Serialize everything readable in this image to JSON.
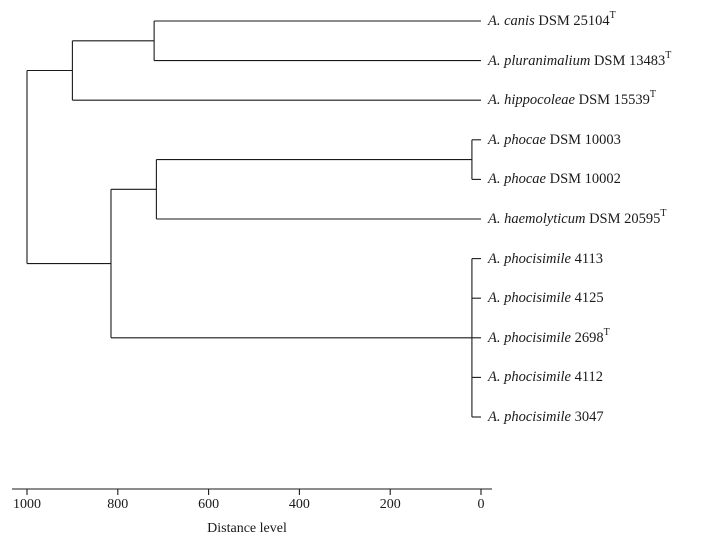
{
  "leaves": [
    {
      "species": "A. canis",
      "strain": "DSM 25104",
      "type_strain": true
    },
    {
      "species": "A. pluranimalium",
      "strain": "DSM 13483",
      "type_strain": true
    },
    {
      "species": "A. hippocoleae",
      "strain": "DSM 15539",
      "type_strain": true
    },
    {
      "species": "A. phocae",
      "strain": "DSM 10003",
      "type_strain": false
    },
    {
      "species": "A. phocae",
      "strain": "DSM 10002",
      "type_strain": false
    },
    {
      "species": "A. haemolyticum",
      "strain": "DSM 20595",
      "type_strain": true
    },
    {
      "species": "A. phocisimile",
      "strain": "4113",
      "type_strain": false
    },
    {
      "species": "A. phocisimile",
      "strain": "4125",
      "type_strain": false
    },
    {
      "species": "A. phocisimile",
      "strain": "2698",
      "type_strain": true
    },
    {
      "species": "A. phocisimile",
      "strain": "4112",
      "type_strain": false
    },
    {
      "species": "A. phocisimile",
      "strain": "3047",
      "type_strain": false
    }
  ],
  "type_strain_mark": "T",
  "clusters": [
    {
      "id": "c_canis_plur",
      "children": [
        0,
        1
      ],
      "distance": 720
    },
    {
      "id": "c_hippo",
      "children": [
        "c_canis_plur",
        2
      ],
      "distance": 900
    },
    {
      "id": "c_phocae",
      "children": [
        3,
        4
      ],
      "distance": 20
    },
    {
      "id": "c_haemo",
      "children": [
        "c_phocae",
        5
      ],
      "distance": 715
    },
    {
      "id": "c_phocisimile",
      "children": [
        6,
        7,
        8,
        9,
        10
      ],
      "distance": 20
    },
    {
      "id": "c_lower",
      "children": [
        "c_haemo",
        "c_phocisimile"
      ],
      "distance": 815
    },
    {
      "id": "c_root",
      "children": [
        "c_hippo",
        "c_lower"
      ],
      "distance": 1000
    }
  ],
  "axis": {
    "title": "Distance level",
    "ticks": [
      1000,
      800,
      600,
      400,
      200,
      0
    ],
    "range": [
      1000,
      0
    ]
  }
}
